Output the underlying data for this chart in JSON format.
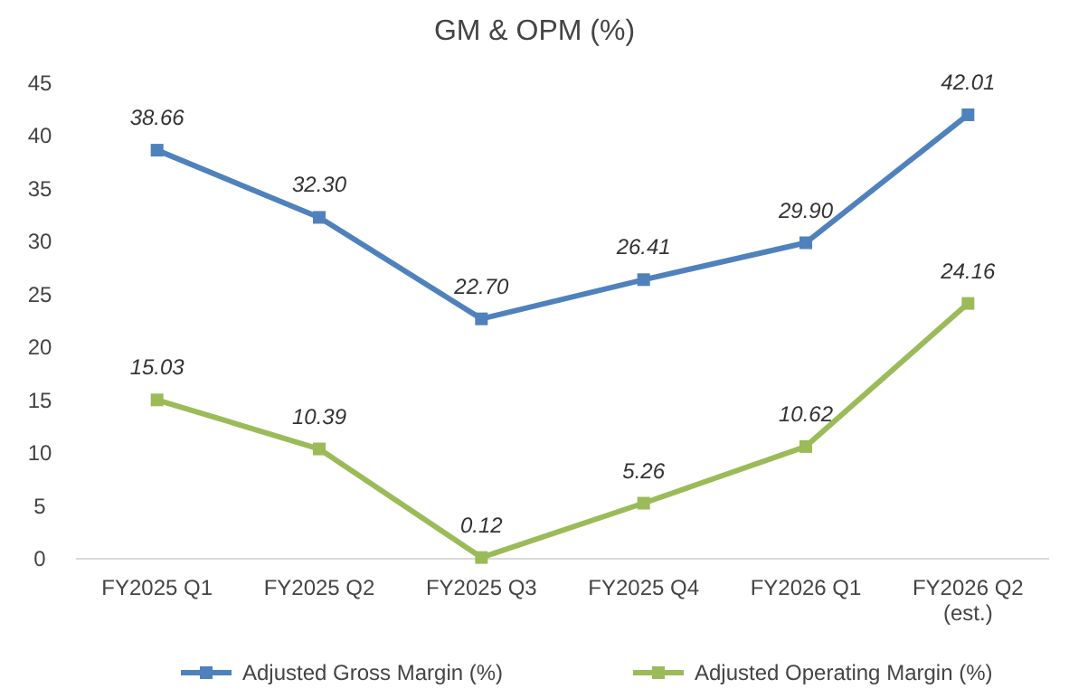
{
  "chart_data": {
    "type": "line",
    "title": "GM & OPM (%)",
    "categories": [
      "FY2025 Q1",
      "FY2025 Q2",
      "FY2025 Q3",
      "FY2025 Q4",
      "FY2026 Q1",
      "FY2026 Q2\n(est.)"
    ],
    "series": [
      {
        "name": "Adjusted Gross Margin (%)",
        "color": "#4f81bd",
        "values": [
          38.66,
          32.3,
          22.7,
          26.41,
          29.9,
          42.01
        ],
        "value_labels": [
          "38.66",
          "32.30",
          "22.70",
          "26.41",
          "29.90",
          "42.01"
        ]
      },
      {
        "name": "Adjusted Operating Margin (%)",
        "color": "#9bbb59",
        "values": [
          15.03,
          10.39,
          0.12,
          5.26,
          10.62,
          24.16
        ],
        "value_labels": [
          "15.03",
          "10.39",
          "0.12",
          "5.26",
          "10.62",
          "24.16"
        ]
      }
    ],
    "ylim": [
      0,
      45
    ],
    "yticks": [
      0,
      5,
      10,
      15,
      20,
      25,
      30,
      35,
      40,
      45
    ],
    "marker": "square",
    "line_style": "solid",
    "legend": "bottom"
  }
}
